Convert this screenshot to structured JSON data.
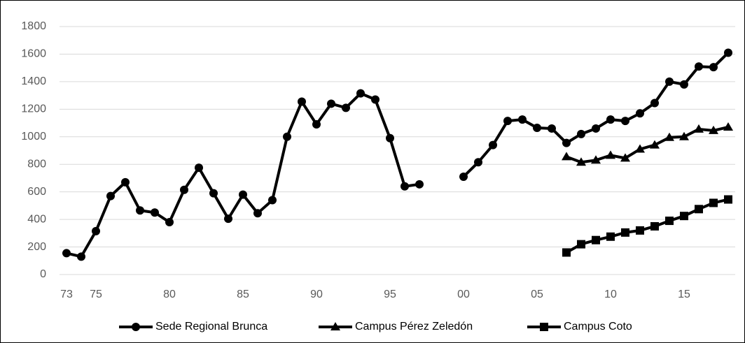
{
  "chart_data": {
    "type": "line",
    "categories": [
      "73",
      null,
      "75",
      null,
      null,
      null,
      null,
      "80",
      null,
      null,
      null,
      null,
      "85",
      null,
      null,
      null,
      null,
      "90",
      null,
      null,
      null,
      null,
      "95",
      null,
      null,
      null,
      null,
      "00",
      null,
      null,
      null,
      null,
      "05",
      null,
      null,
      null,
      null,
      "10",
      null,
      null,
      null,
      null,
      "15",
      null,
      null,
      null
    ],
    "series": [
      {
        "name": "Sede Regional Brunca",
        "color": "#000000",
        "marker": "circle",
        "values": [
          155,
          130,
          315,
          570,
          670,
          465,
          450,
          380,
          615,
          775,
          590,
          405,
          580,
          445,
          540,
          1000,
          1255,
          1090,
          1240,
          1210,
          1315,
          1270,
          990,
          640,
          655,
          null,
          null,
          710,
          815,
          940,
          1115,
          1125,
          1065,
          1060,
          955,
          1020,
          1060,
          1125,
          1115,
          1170,
          1245,
          1400,
          1380,
          1510,
          1505,
          1610
        ]
      },
      {
        "name": "Campus Pérez Zeledón",
        "color": "#000000",
        "marker": "triangle",
        "values": [
          null,
          null,
          null,
          null,
          null,
          null,
          null,
          null,
          null,
          null,
          null,
          null,
          null,
          null,
          null,
          null,
          null,
          null,
          null,
          null,
          null,
          null,
          null,
          null,
          null,
          null,
          null,
          null,
          null,
          null,
          null,
          null,
          null,
          null,
          855,
          815,
          830,
          865,
          845,
          910,
          940,
          995,
          1000,
          1055,
          1045,
          1070
        ]
      },
      {
        "name": "Campus Coto",
        "color": "#000000",
        "marker": "square",
        "values": [
          null,
          null,
          null,
          null,
          null,
          null,
          null,
          null,
          null,
          null,
          null,
          null,
          null,
          null,
          null,
          null,
          null,
          null,
          null,
          null,
          null,
          null,
          null,
          null,
          null,
          null,
          null,
          null,
          null,
          null,
          null,
          null,
          null,
          null,
          160,
          220,
          250,
          275,
          305,
          320,
          350,
          390,
          425,
          475,
          520,
          545
        ]
      }
    ],
    "ylim": [
      0,
      1800
    ],
    "yticks": [
      0,
      200,
      400,
      600,
      800,
      1000,
      1200,
      1400,
      1600,
      1800
    ],
    "grid": true,
    "legend": "bottom"
  }
}
